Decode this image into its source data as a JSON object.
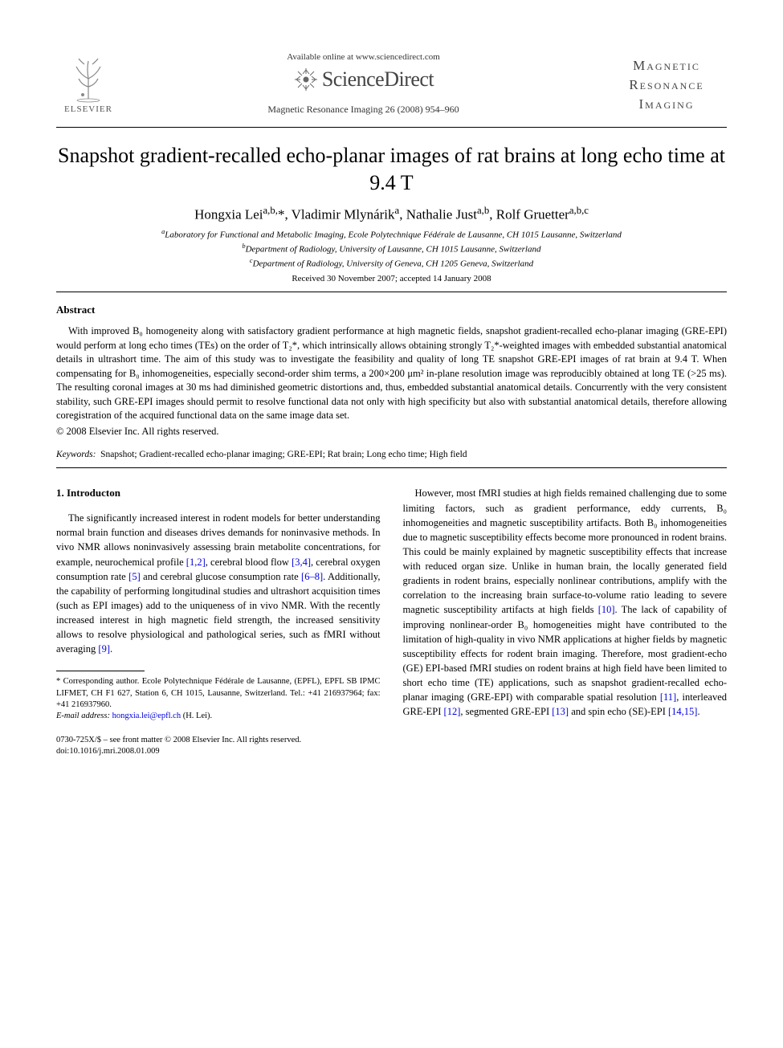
{
  "header": {
    "available": "Available online at www.sciencedirect.com",
    "sd_brand": "ScienceDirect",
    "citation": "Magnetic Resonance Imaging 26 (2008) 954–960",
    "elsevier": "ELSEVIER",
    "journal_line1": "Magnetic",
    "journal_line2": "Resonance",
    "journal_line3": "Imaging"
  },
  "title": "Snapshot gradient-recalled echo-planar images of rat brains at long echo time at 9.4 T",
  "authors_html": "Hongxia Lei<sup>a,b,</sup>*, Vladimir Mlynárik<sup>a</sup>, Nathalie Just<sup>a,b</sup>, Rolf Gruetter<sup>a,b,c</sup>",
  "affiliations": {
    "a": "Laboratory for Functional and Metabolic Imaging, Ecole Polytechnique Fédérale de Lausanne, CH 1015 Lausanne, Switzerland",
    "b": "Department of Radiology, University of Lausanne, CH 1015 Lausanne, Switzerland",
    "c": "Department of Radiology, University of Geneva, CH 1205 Geneva, Switzerland"
  },
  "dates": "Received 30 November 2007; accepted 14 January 2008",
  "abstract_head": "Abstract",
  "abstract": "With improved B₀ homogeneity along with satisfactory gradient performance at high magnetic fields, snapshot gradient-recalled echo-planar imaging (GRE-EPI) would perform at long echo times (TEs) on the order of T₂*, which intrinsically allows obtaining strongly T₂*-weighted images with embedded substantial anatomical details in ultrashort time. The aim of this study was to investigate the feasibility and quality of long TE snapshot GRE-EPI images of rat brain at 9.4 T. When compensating for B₀ inhomogeneities, especially second-order shim terms, a 200×200 μm² in-plane resolution image was reproducibly obtained at long TE (>25 ms). The resulting coronal images at 30 ms had diminished geometric distortions and, thus, embedded substantial anatomical details. Concurrently with the very consistent stability, such GRE-EPI images should permit to resolve functional data not only with high specificity but also with substantial anatomical details, therefore allowing coregistration of the acquired functional data on the same image data set.",
  "copyright": "© 2008 Elsevier Inc. All rights reserved.",
  "keywords_label": "Keywords:",
  "keywords": "Snapshot; Gradient-recalled echo-planar imaging; GRE-EPI; Rat brain; Long echo time; High field",
  "section1_head": "1. Introducton",
  "col_left_p1": "The significantly increased interest in rodent models for better understanding normal brain function and diseases drives demands for noninvasive methods. In vivo NMR allows noninvasively assessing brain metabolite concentrations, for example, neurochemical profile ",
  "ref_1_2": "[1,2]",
  "col_left_p1b": ", cerebral blood flow ",
  "ref_3_4": "[3,4]",
  "col_left_p1c": ", cerebral oxygen consumption rate ",
  "ref_5": "[5]",
  "col_left_p1d": " and cerebral glucose consumption rate ",
  "ref_6_8": "[6–8]",
  "col_left_p1e": ". Additionally, the capability of performing longitudinal studies and ultrashort acquisition times (such as EPI images) add to the uniqueness of in vivo NMR. With the recently increased interest in high magnetic field strength, the increased sensitivity allows to resolve physiological and pathological series, such as fMRI without averaging ",
  "ref_9": "[9]",
  "col_left_p1f": ".",
  "col_right_p1a": "However, most fMRI studies at high fields remained challenging due to some limiting factors, such as gradient performance, eddy currents, B₀ inhomogeneities and magnetic susceptibility artifacts. Both B₀ inhomogeneities due to magnetic susceptibility effects become more pronounced in rodent brains. This could be mainly explained by magnetic susceptibility effects that increase with reduced organ size. Unlike in human brain, the locally generated field gradients in rodent brains, especially nonlinear contributions, amplify with the correlation to the increasing brain surface-to-volume ratio leading to severe magnetic susceptibility artifacts at high fields ",
  "ref_10": "[10]",
  "col_right_p1b": ". The lack of capability of improving nonlinear-order B₀ homogeneities might have contributed to the limitation of high-quality in vivo NMR applications at higher fields by magnetic susceptibility effects for rodent brain imaging. Therefore, most gradient-echo (GE) EPI-based fMRI studies on rodent brains at high field have been limited to short echo time (TE) applications, such as snapshot gradient-recalled echo-planar imaging (GRE-EPI) with comparable spatial resolution ",
  "ref_11": "[11]",
  "col_right_p1c": ", interleaved GRE-EPI ",
  "ref_12": "[12]",
  "col_right_p1d": ", segmented GRE-EPI ",
  "ref_13": "[13]",
  "col_right_p1e": " and spin echo (SE)-EPI ",
  "ref_14_15": "[14,15]",
  "col_right_p1f": ".",
  "footnote_corr": "* Corresponding author. Ecole Polytechnique Fédérale de Lausanne, (EPFL), EPFL SB IPMC LIFMET, CH F1 627, Station 6, CH 1015, Lausanne, Switzerland. Tel.: +41 216937964; fax: +41 216937960.",
  "footnote_email_label": "E-mail address:",
  "footnote_email": "hongxia.lei@epfl.ch",
  "footnote_email_tail": " (H. Lei).",
  "footer1": "0730-725X/$ – see front matter © 2008 Elsevier Inc. All rights reserved.",
  "footer2": "doi:10.1016/j.mri.2008.01.009",
  "colors": {
    "link": "#0000dd",
    "text": "#000000",
    "gray": "#555555",
    "background": "#ffffff"
  }
}
